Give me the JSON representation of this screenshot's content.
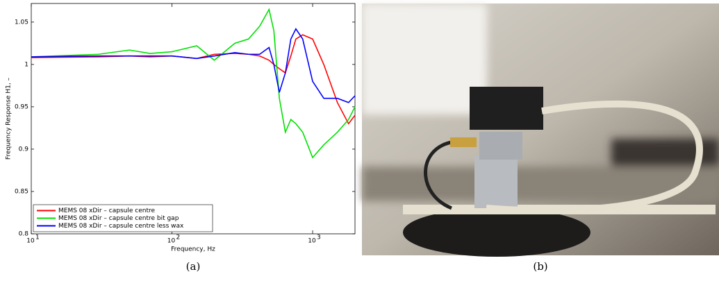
{
  "chart_data": {
    "type": "line",
    "x_label": "Frequency, Hz",
    "y_label": "Frequency Response H1, –",
    "caption": "(a)",
    "photo_caption": "(b)",
    "x_log": true,
    "x": [
      10,
      30,
      50,
      70,
      100,
      150,
      200,
      280,
      350,
      420,
      490,
      530,
      580,
      640,
      700,
      760,
      850,
      1000,
      1200,
      1500,
      1800,
      2000
    ],
    "series": [
      {
        "name": "MEMS 08 xDir – capsule centre",
        "color": "#ff0000",
        "values": [
          1.008,
          1.009,
          1.01,
          1.009,
          1.01,
          1.007,
          1.012,
          1.013,
          1.012,
          1.01,
          1.005,
          1.0,
          0.995,
          0.99,
          1.01,
          1.03,
          1.035,
          1.03,
          1.0,
          0.955,
          0.93,
          0.94
        ]
      },
      {
        "name": "MEMS 08 xDir – capsule centre bit gap",
        "color": "#00e000",
        "values": [
          1.009,
          1.012,
          1.017,
          1.013,
          1.015,
          1.022,
          1.005,
          1.025,
          1.03,
          1.045,
          1.065,
          1.04,
          0.96,
          0.92,
          0.935,
          0.93,
          0.92,
          0.89,
          0.905,
          0.92,
          0.935,
          0.95
        ]
      },
      {
        "name": "MEMS 08 xDir – capsule centre less wax",
        "color": "#0000ff",
        "values": [
          1.009,
          1.01,
          1.01,
          1.01,
          1.01,
          1.007,
          1.01,
          1.014,
          1.012,
          1.012,
          1.02,
          1.0,
          0.967,
          0.99,
          1.03,
          1.042,
          1.03,
          0.98,
          0.96,
          0.96,
          0.955,
          0.963
        ]
      }
    ],
    "xlim": [
      10,
      2000
    ],
    "ylim": [
      0.8,
      1.072
    ],
    "xticks": [
      {
        "value": 10,
        "label": "10",
        "exponent": "1"
      },
      {
        "value": 100,
        "label": "10",
        "exponent": "2"
      },
      {
        "value": 1000,
        "label": "10",
        "exponent": "3"
      }
    ],
    "yticks": [
      0.8,
      0.85,
      0.9,
      0.95,
      1,
      1.05
    ],
    "legend": "lower left"
  }
}
